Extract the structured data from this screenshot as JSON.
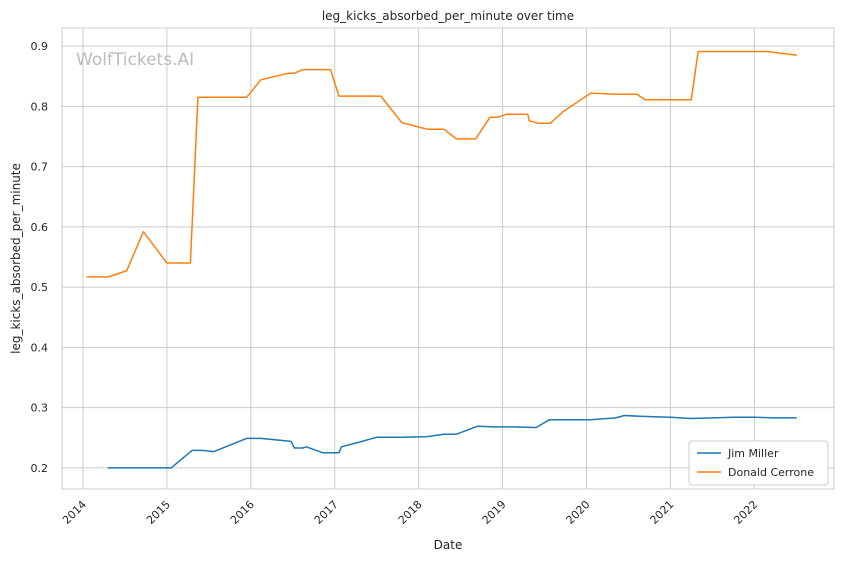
{
  "chart_data": {
    "type": "line",
    "title": "leg_kicks_absorbed_per_minute over time",
    "xlabel": "Date",
    "ylabel": "leg_kicks_absorbed_per_minute",
    "watermark": "WolfTickets.AI",
    "xlim": [
      2013.75,
      2022.95
    ],
    "ylim": [
      0.165,
      0.93
    ],
    "x_ticks": [
      {
        "value": 2014,
        "label": "2014"
      },
      {
        "value": 2015,
        "label": "2015"
      },
      {
        "value": 2016,
        "label": "2016"
      },
      {
        "value": 2017,
        "label": "2017"
      },
      {
        "value": 2018,
        "label": "2018"
      },
      {
        "value": 2019,
        "label": "2019"
      },
      {
        "value": 2020,
        "label": "2020"
      },
      {
        "value": 2021,
        "label": "2021"
      },
      {
        "value": 2022,
        "label": "2022"
      }
    ],
    "y_ticks": [
      {
        "value": 0.2,
        "label": "0.2"
      },
      {
        "value": 0.3,
        "label": "0.3"
      },
      {
        "value": 0.4,
        "label": "0.4"
      },
      {
        "value": 0.5,
        "label": "0.5"
      },
      {
        "value": 0.6,
        "label": "0.6"
      },
      {
        "value": 0.7,
        "label": "0.7"
      },
      {
        "value": 0.8,
        "label": "0.8"
      },
      {
        "value": 0.9,
        "label": "0.9"
      }
    ],
    "grid": true,
    "legend_position": "lower-right",
    "series": [
      {
        "name": "Jim Miller",
        "color": "#1f77b4",
        "x": [
          2014.3,
          2014.55,
          2014.8,
          2015.05,
          2015.3,
          2015.42,
          2015.56,
          2015.95,
          2016.12,
          2016.48,
          2016.52,
          2016.62,
          2016.66,
          2016.86,
          2017.05,
          2017.08,
          2017.3,
          2017.5,
          2017.8,
          2018.1,
          2018.3,
          2018.45,
          2018.7,
          2018.9,
          2019.1,
          2019.4,
          2019.56,
          2019.8,
          2020.05,
          2020.35,
          2020.45,
          2020.6,
          2020.8,
          2021.0,
          2021.25,
          2021.5,
          2021.75,
          2022.0,
          2022.25,
          2022.5
        ],
        "values": [
          0.2,
          0.2,
          0.2,
          0.2,
          0.229,
          0.229,
          0.227,
          0.249,
          0.249,
          0.244,
          0.233,
          0.233,
          0.235,
          0.225,
          0.225,
          0.235,
          0.243,
          0.251,
          0.251,
          0.252,
          0.256,
          0.256,
          0.269,
          0.268,
          0.268,
          0.267,
          0.28,
          0.28,
          0.28,
          0.283,
          0.287,
          0.286,
          0.285,
          0.284,
          0.282,
          0.283,
          0.284,
          0.284,
          0.283,
          0.283
        ]
      },
      {
        "name": "Donald Cerrone",
        "color": "#ff7f0e",
        "x": [
          2014.05,
          2014.3,
          2014.52,
          2014.72,
          2015.0,
          2015.28,
          2015.37,
          2015.95,
          2016.12,
          2016.45,
          2016.52,
          2016.62,
          2016.95,
          2017.05,
          2017.55,
          2017.8,
          2018.1,
          2018.3,
          2018.45,
          2018.68,
          2018.85,
          2018.95,
          2019.05,
          2019.3,
          2019.32,
          2019.42,
          2019.57,
          2019.72,
          2020.05,
          2020.35,
          2020.6,
          2020.7,
          2021.25,
          2021.33,
          2021.6,
          2021.9,
          2022.15,
          2022.5
        ],
        "values": [
          0.517,
          0.517,
          0.527,
          0.592,
          0.54,
          0.54,
          0.815,
          0.815,
          0.844,
          0.855,
          0.855,
          0.861,
          0.861,
          0.817,
          0.817,
          0.773,
          0.762,
          0.762,
          0.746,
          0.746,
          0.782,
          0.782,
          0.787,
          0.787,
          0.776,
          0.772,
          0.772,
          0.791,
          0.822,
          0.82,
          0.82,
          0.811,
          0.811,
          0.891,
          0.891,
          0.891,
          0.891,
          0.885
        ]
      }
    ]
  }
}
